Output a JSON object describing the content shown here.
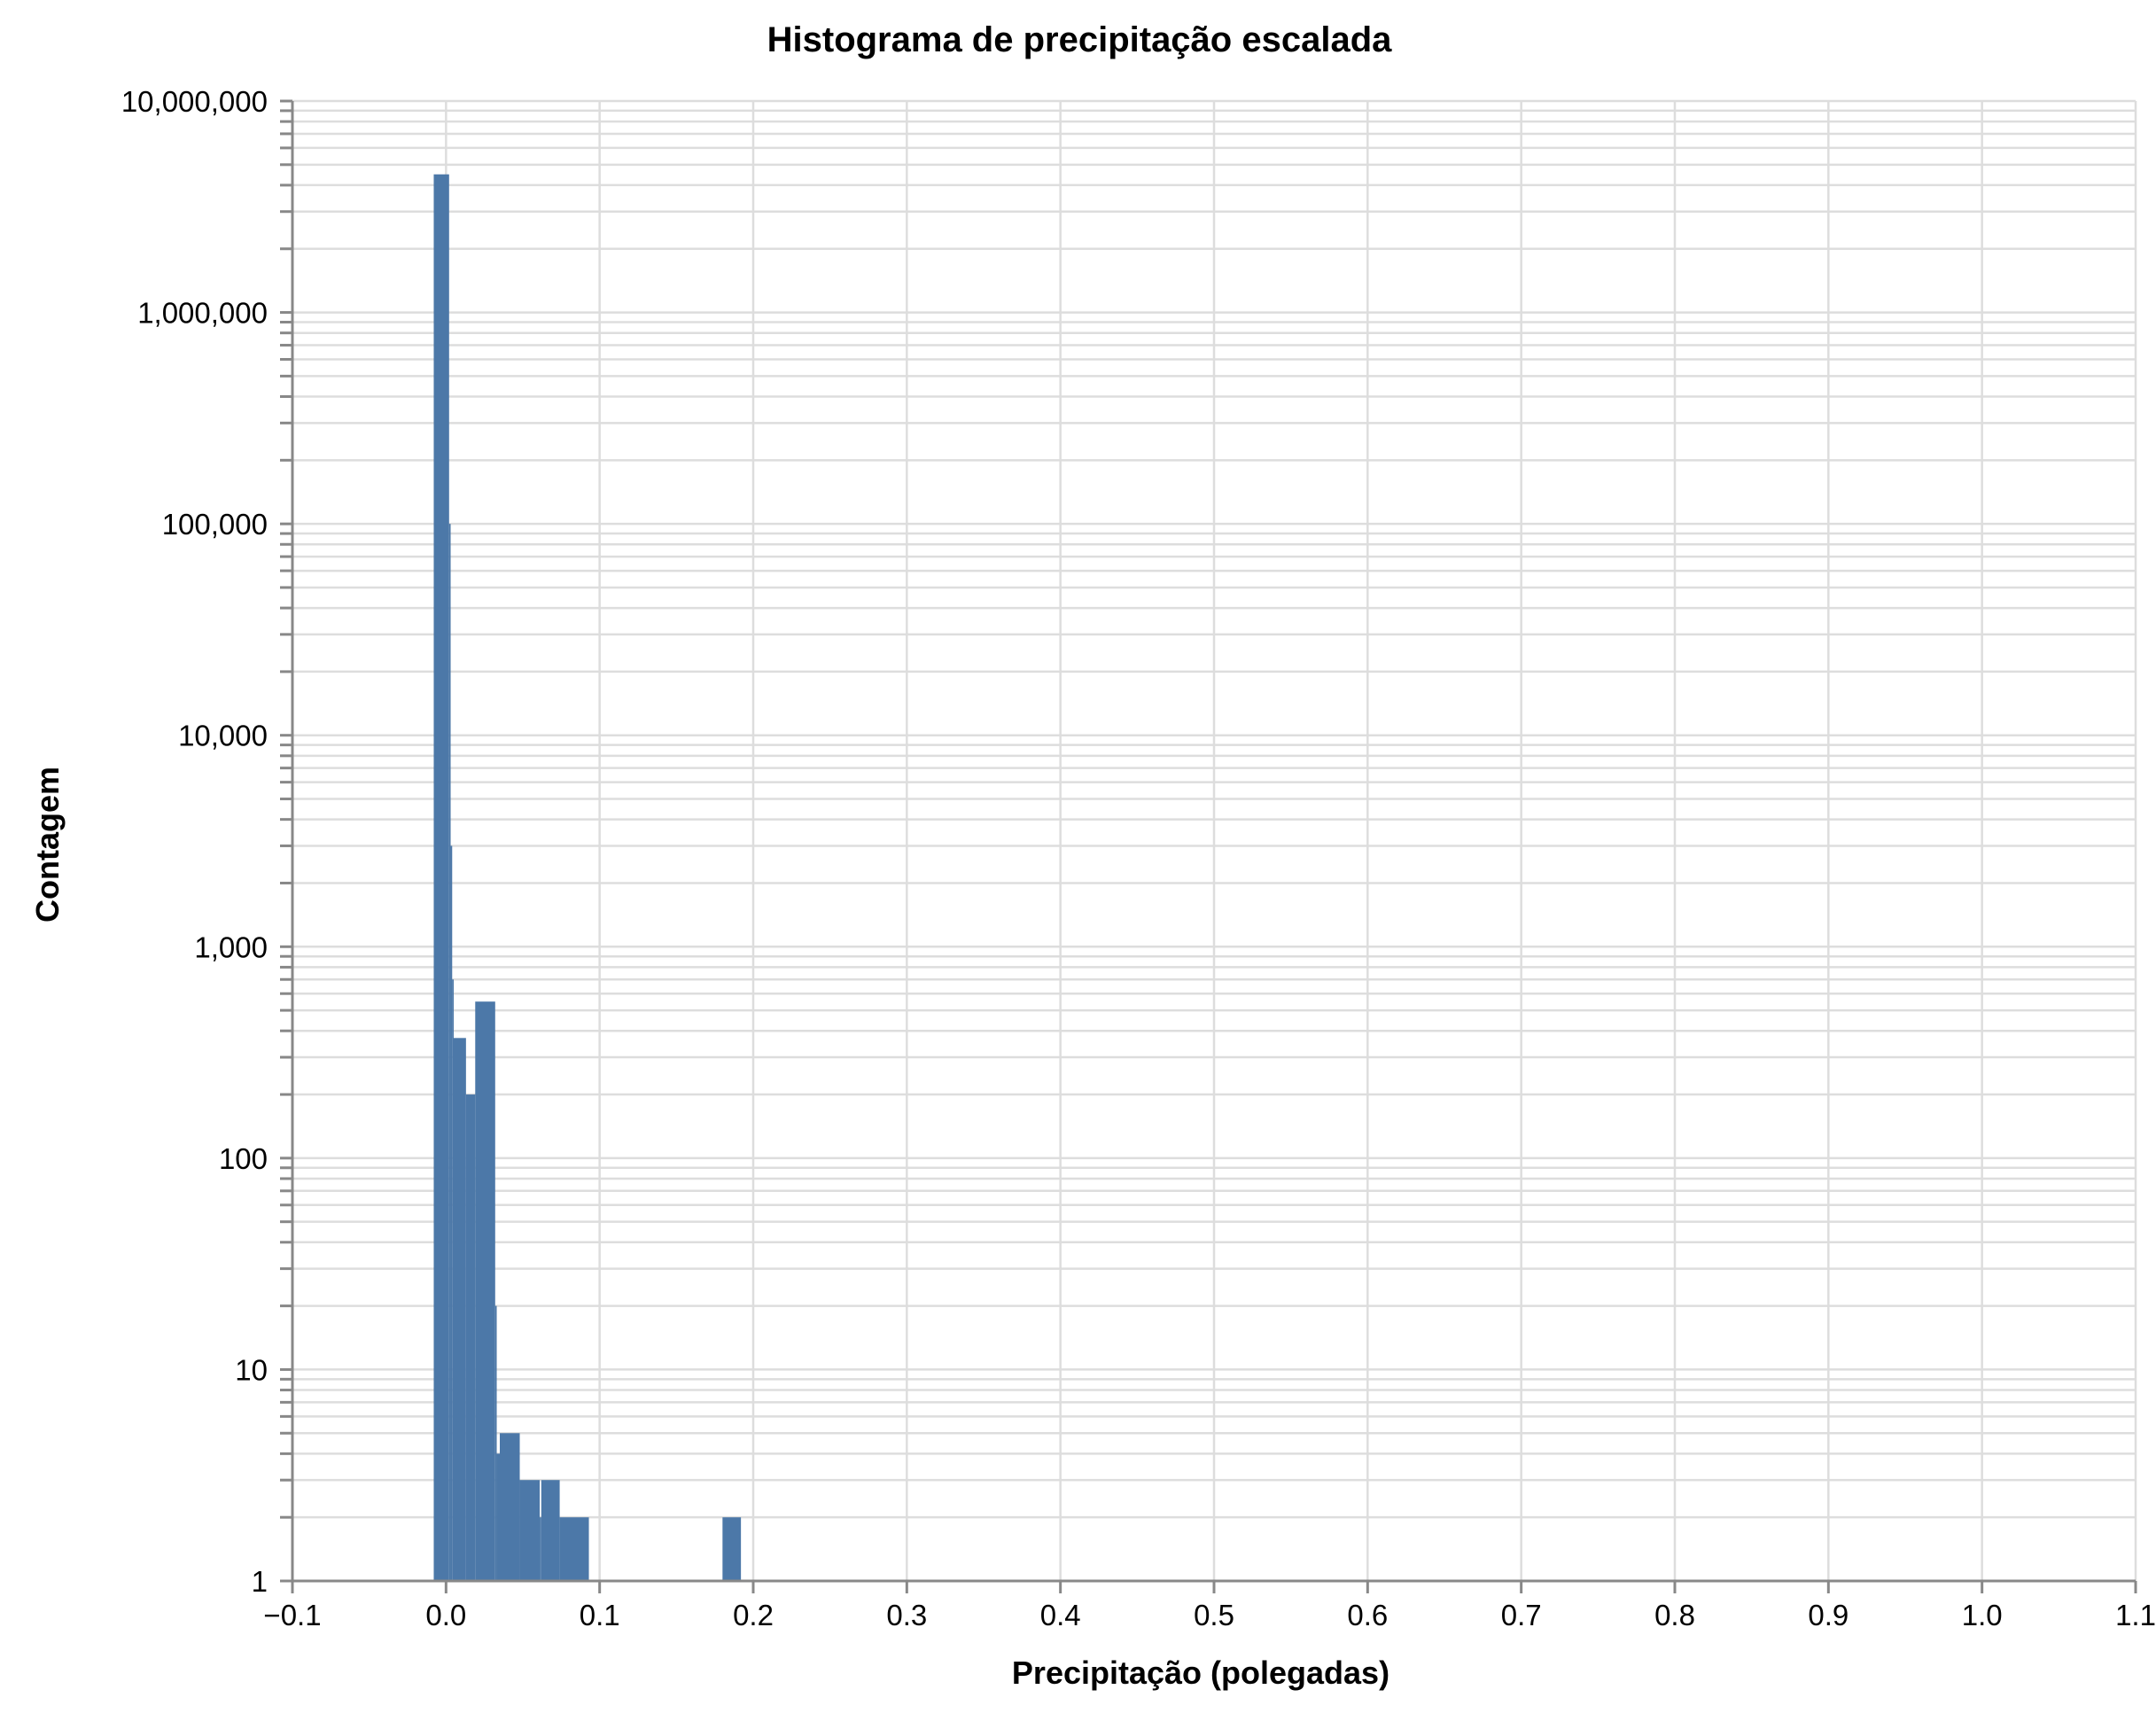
{
  "chart_data": {
    "type": "bar",
    "title": "Histograma de precipitação escalada",
    "xlabel": "Precipitação (polegadas)",
    "ylabel": "Contagem",
    "xlim": [
      -0.1,
      1.1
    ],
    "ylim": [
      1,
      10000000
    ],
    "y_scale": "log",
    "grid": true,
    "bar_color": "#4c78a8",
    "x_ticks": [
      {
        "value": -0.1,
        "label": "−0.1"
      },
      {
        "value": 0.0,
        "label": "0.0"
      },
      {
        "value": 0.1,
        "label": "0.1"
      },
      {
        "value": 0.2,
        "label": "0.2"
      },
      {
        "value": 0.3,
        "label": "0.3"
      },
      {
        "value": 0.4,
        "label": "0.4"
      },
      {
        "value": 0.5,
        "label": "0.5"
      },
      {
        "value": 0.6,
        "label": "0.6"
      },
      {
        "value": 0.7,
        "label": "0.7"
      },
      {
        "value": 0.8,
        "label": "0.8"
      },
      {
        "value": 0.9,
        "label": "0.9"
      },
      {
        "value": 1.0,
        "label": "1.0"
      },
      {
        "value": 1.1,
        "label": "1.1"
      }
    ],
    "y_ticks": [
      {
        "value": 1,
        "label": "1"
      },
      {
        "value": 10,
        "label": "10"
      },
      {
        "value": 100,
        "label": "100"
      },
      {
        "value": 1000,
        "label": "1,000"
      },
      {
        "value": 10000,
        "label": "10,000"
      },
      {
        "value": 100000,
        "label": "100,000"
      },
      {
        "value": 1000000,
        "label": "1,000,000"
      },
      {
        "value": 10000000,
        "label": "10,000,000"
      }
    ],
    "bins": [
      {
        "x0": -0.008,
        "x1": 0.002,
        "count": 4500000
      },
      {
        "x0": 0.002,
        "x1": 0.003,
        "count": 100000
      },
      {
        "x0": 0.003,
        "x1": 0.004,
        "count": 3000
      },
      {
        "x0": 0.004,
        "x1": 0.005,
        "count": 700
      },
      {
        "x0": 0.005,
        "x1": 0.013,
        "count": 370
      },
      {
        "x0": 0.013,
        "x1": 0.019,
        "count": 200
      },
      {
        "x0": 0.019,
        "x1": 0.032,
        "count": 550
      },
      {
        "x0": 0.032,
        "x1": 0.033,
        "count": 20
      },
      {
        "x0": 0.033,
        "x1": 0.035,
        "count": 4
      },
      {
        "x0": 0.035,
        "x1": 0.048,
        "count": 5
      },
      {
        "x0": 0.048,
        "x1": 0.061,
        "count": 3
      },
      {
        "x0": 0.061,
        "x1": 0.062,
        "count": 2
      },
      {
        "x0": 0.062,
        "x1": 0.074,
        "count": 3
      },
      {
        "x0": 0.074,
        "x1": 0.093,
        "count": 2
      },
      {
        "x0": 0.18,
        "x1": 0.192,
        "count": 2
      }
    ]
  }
}
